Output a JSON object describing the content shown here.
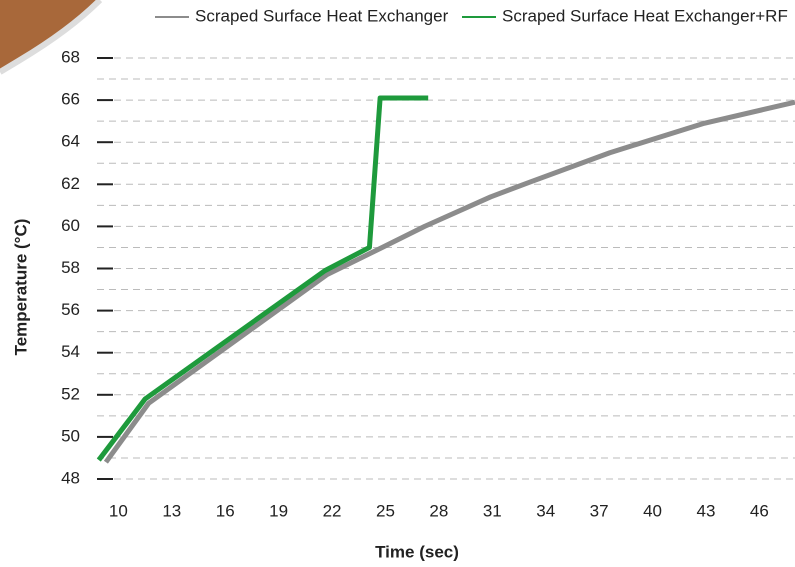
{
  "chart_data": {
    "type": "line",
    "x_label": "Time (sec)",
    "y_label": "Temperature (°C)",
    "series": [
      {
        "name": "Scraped Surface Heat Exchanger",
        "color": "#8c8c8c",
        "x": [
          9.3,
          11.7,
          21.7,
          24.1,
          27.2,
          30.9,
          33.1,
          37.6,
          42.9,
          48
        ],
        "values": [
          48.8,
          51.6,
          57.7,
          58.7,
          60.0,
          61.4,
          62.1,
          63.5,
          64.9,
          65.9
        ]
      },
      {
        "name": "Scraped Surface Heat Exchanger+RF",
        "color": "#1e9a3c",
        "x": [
          8.9,
          11.5,
          21.6,
          24.1,
          24.7,
          27.4
        ],
        "values": [
          48.9,
          51.8,
          57.9,
          59.0,
          66.1,
          66.1
        ]
      }
    ],
    "xlim": [
      8.8,
      48
    ],
    "xticks": [
      10,
      13,
      16,
      19,
      22,
      25,
      28,
      31,
      34,
      37,
      40,
      43,
      46
    ],
    "ylim": [
      48,
      68
    ],
    "yticks": [
      48,
      50,
      52,
      54,
      56,
      58,
      60,
      62,
      64,
      66,
      68
    ],
    "minor_yticks": [
      49,
      51,
      53,
      55,
      57,
      59,
      61,
      63,
      65,
      67
    ],
    "grid": true
  }
}
